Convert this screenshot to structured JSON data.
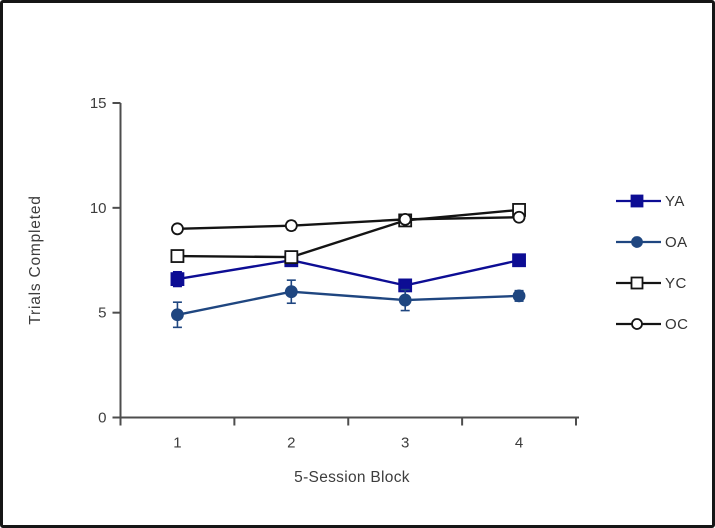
{
  "figure": {
    "background": "#ffffff",
    "border_color": "#161616"
  },
  "chart_data": {
    "type": "line",
    "title": "",
    "xlabel": "5-Session Block",
    "ylabel": "Trials Completed",
    "categories": [
      "1",
      "2",
      "3",
      "4"
    ],
    "ylim": [
      0,
      15
    ],
    "yticks": [
      0,
      5,
      10,
      15
    ],
    "grid": false,
    "legend_position": "right",
    "axis_color": "#4d4d4d",
    "text_color": "#3d3d3d",
    "error_bars": true,
    "series": [
      {
        "name": "YA",
        "color": "#0d0d94",
        "marker": "filled-square",
        "values": [
          6.6,
          7.5,
          6.3,
          7.5
        ],
        "errors": [
          0.35,
          0.2,
          0.2,
          0.25
        ]
      },
      {
        "name": "OA",
        "color": "#1f4680",
        "marker": "filled-circle",
        "values": [
          4.9,
          6.0,
          5.6,
          5.8
        ],
        "errors": [
          0.6,
          0.55,
          0.5,
          0.25
        ]
      },
      {
        "name": "YC",
        "color": "#141414",
        "marker": "open-square",
        "values": [
          7.7,
          7.65,
          9.4,
          9.9
        ],
        "errors": [
          0.2,
          0.15,
          0.15,
          0.25
        ]
      },
      {
        "name": "OC",
        "color": "#141414",
        "marker": "open-circle",
        "values": [
          9.0,
          9.15,
          9.45,
          9.55
        ],
        "errors": [
          0.15,
          0.2,
          0.15,
          0.1
        ]
      }
    ]
  }
}
